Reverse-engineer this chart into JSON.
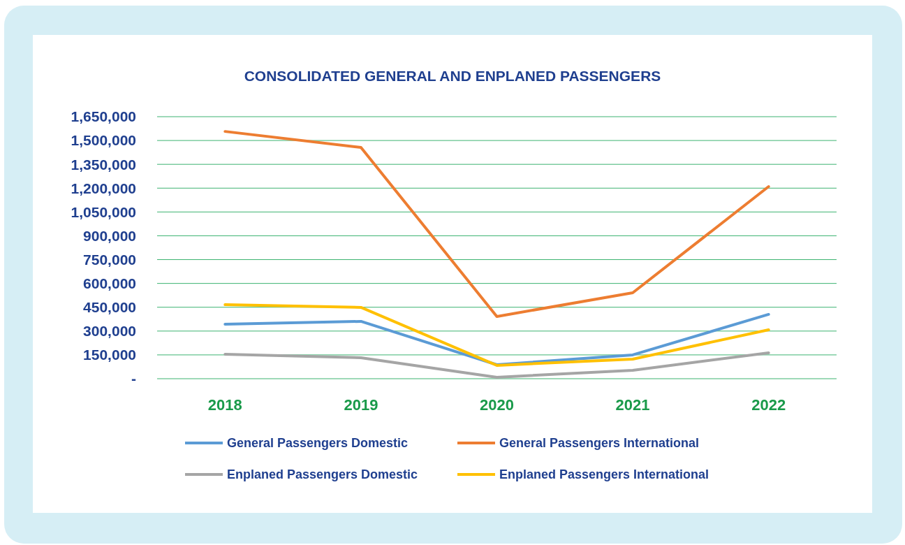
{
  "chart_data": {
    "type": "line",
    "title": "CONSOLIDATED GENERAL AND ENPLANED PASSENGERS",
    "categories": [
      "2018",
      "2019",
      "2020",
      "2021",
      "2022"
    ],
    "series": [
      {
        "name": "General Passengers Domestic",
        "color": "#5b9bd5",
        "values": [
          343000,
          361000,
          88000,
          150000,
          405000
        ]
      },
      {
        "name": "General Passengers International",
        "color": "#ed7d31",
        "values": [
          1557000,
          1456000,
          392000,
          541000,
          1210000
        ]
      },
      {
        "name": "Enplaned Passengers Domestic",
        "color": "#a5a5a5",
        "values": [
          154000,
          132000,
          9000,
          53000,
          163000
        ]
      },
      {
        "name": "Enplaned Passengers International",
        "color": "#ffc000",
        "values": [
          466000,
          449000,
          84000,
          123000,
          308000
        ]
      }
    ],
    "ylim": [
      0,
      1650000
    ],
    "yticks": [
      {
        "value": 0,
        "label": "-"
      },
      {
        "value": 150000,
        "label": "150,000"
      },
      {
        "value": 300000,
        "label": "300,000"
      },
      {
        "value": 450000,
        "label": "450,000"
      },
      {
        "value": 600000,
        "label": "600,000"
      },
      {
        "value": 750000,
        "label": "750,000"
      },
      {
        "value": 900000,
        "label": "900,000"
      },
      {
        "value": 1050000,
        "label": "1,050,000"
      },
      {
        "value": 1200000,
        "label": "1,200,000"
      },
      {
        "value": 1350000,
        "label": "1,350,000"
      },
      {
        "value": 1500000,
        "label": "1,500,000"
      },
      {
        "value": 1650000,
        "label": "1,650,000"
      }
    ],
    "grid": "y",
    "legend": "bottom",
    "marker": "none",
    "line_style": "solid"
  }
}
